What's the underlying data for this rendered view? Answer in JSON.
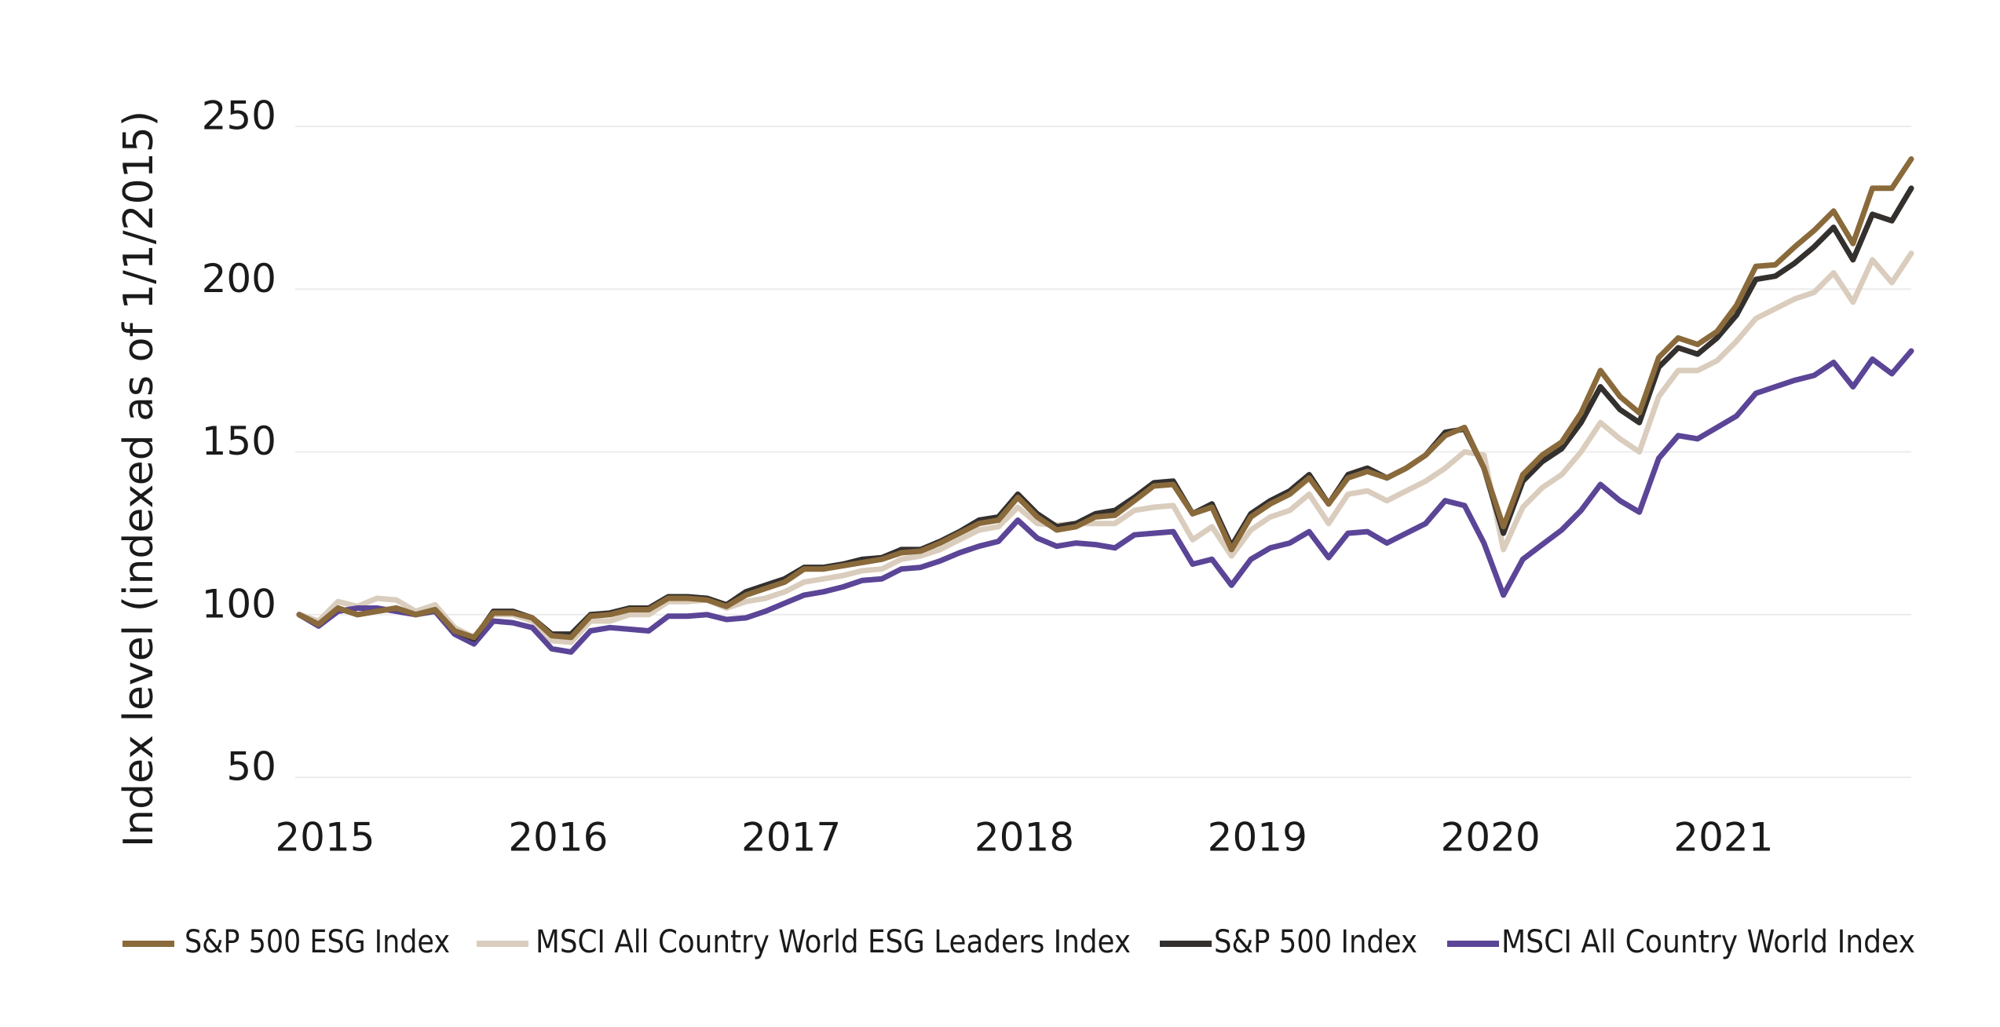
{
  "chart_data": {
    "type": "line",
    "y_axis_label": "Index level (indexed as of 1/1/2015)",
    "categories": [
      "2015",
      null,
      null,
      null,
      null,
      null,
      null,
      null,
      null,
      null,
      null,
      null,
      "2016",
      null,
      null,
      null,
      null,
      null,
      null,
      null,
      null,
      null,
      null,
      null,
      "2017",
      null,
      null,
      null,
      null,
      null,
      null,
      null,
      null,
      null,
      null,
      null,
      "2018",
      null,
      null,
      null,
      null,
      null,
      null,
      null,
      null,
      null,
      null,
      null,
      "2019",
      null,
      null,
      null,
      null,
      null,
      null,
      null,
      null,
      null,
      null,
      null,
      "2020",
      null,
      null,
      null,
      null,
      null,
      null,
      null,
      null,
      null,
      null,
      null,
      "2021",
      null,
      null,
      null,
      null,
      null,
      null,
      null,
      null,
      null,
      null,
      null
    ],
    "ylim": [
      50,
      250
    ],
    "yticks": [
      50,
      100,
      150,
      200,
      250
    ],
    "grid": true,
    "legend": "bottom",
    "series": [
      {
        "name": "S&P 500 ESG Index",
        "color": "#8a6a3b",
        "values": [
          100,
          97,
          102,
          100,
          101,
          102,
          100,
          101.5,
          95,
          93,
          100.5,
          100.5,
          99,
          93.5,
          93,
          99.5,
          100,
          101.5,
          101.5,
          105,
          105,
          104.5,
          102.5,
          106,
          108,
          110,
          114,
          114,
          115,
          116,
          117,
          119,
          119.5,
          122,
          125,
          128,
          129,
          136,
          130,
          126,
          127,
          130,
          130.5,
          135,
          139.5,
          140,
          131,
          133,
          120,
          130,
          134,
          137,
          142,
          134,
          142,
          144,
          142,
          145,
          149,
          155,
          157.5,
          145,
          127,
          143,
          149,
          153,
          162,
          175,
          167,
          162,
          179,
          185,
          183,
          187,
          195,
          207,
          207.5,
          213,
          218,
          224,
          214,
          231,
          231,
          240
        ]
      },
      {
        "name": "MSCI All Country World ESG Leaders Index",
        "color": "#dacdbd",
        "values": [
          100,
          98,
          104,
          102.5,
          105,
          104.5,
          101,
          103,
          96,
          93,
          100,
          100,
          98,
          92,
          91.5,
          98,
          98,
          100,
          100,
          104,
          104,
          104.5,
          102,
          104,
          105,
          107,
          110,
          111,
          112,
          113.5,
          114,
          117,
          118,
          120,
          123,
          126,
          127,
          133,
          128,
          127.5,
          128,
          128,
          128,
          132,
          133,
          133.5,
          123,
          127,
          118,
          126,
          130,
          132,
          137,
          128,
          137,
          138,
          135,
          138,
          141,
          145,
          150,
          149,
          120,
          133,
          139,
          143,
          150,
          159,
          154,
          150,
          167,
          175,
          175,
          178,
          184,
          191,
          194,
          197,
          199,
          205,
          196,
          209,
          202,
          211
        ]
      },
      {
        "name": "S&P 500 Index",
        "color": "#33302e",
        "values": [
          100,
          97,
          102,
          100,
          101,
          102,
          100,
          101.5,
          95,
          92.5,
          101,
          101,
          99,
          94,
          94,
          100,
          100.5,
          102,
          102,
          105.5,
          105.5,
          105,
          103,
          107,
          109,
          111,
          114.5,
          114.5,
          115.5,
          117,
          117.5,
          120,
          120,
          122.5,
          125.5,
          129,
          130,
          137,
          131,
          127,
          128,
          131,
          132,
          136,
          140.5,
          141,
          131,
          134,
          121,
          131,
          135,
          138,
          143,
          134,
          143,
          145,
          142,
          145,
          149,
          156,
          157,
          145,
          125,
          141,
          147,
          151,
          159,
          170,
          163,
          159,
          176,
          182,
          180,
          185,
          192,
          203,
          204,
          208,
          213,
          219,
          209,
          223,
          221,
          231
        ]
      },
      {
        "name": "MSCI All Country World Index",
        "color": "#5b4597",
        "values": [
          100,
          96.5,
          101,
          102,
          102,
          101,
          100,
          101,
          94,
          91,
          98,
          97.5,
          96,
          89.5,
          88.5,
          95,
          96,
          95.5,
          95,
          99.5,
          99.5,
          100,
          98.5,
          99,
          101,
          103.5,
          106,
          107,
          108.5,
          110.5,
          111,
          114,
          114.5,
          116.5,
          119,
          121,
          122.5,
          129,
          123.5,
          121,
          122,
          121.5,
          120.5,
          124.5,
          125,
          125.5,
          115.5,
          117,
          109,
          117,
          120.5,
          122,
          125.5,
          117.5,
          125,
          125.5,
          122,
          125,
          128,
          135,
          133.5,
          122,
          106,
          117,
          121.5,
          126,
          132,
          140,
          135,
          131.5,
          148,
          155,
          154,
          157.5,
          161,
          168,
          170,
          172,
          173.5,
          177.5,
          170,
          178.5,
          174,
          181
        ]
      }
    ]
  }
}
